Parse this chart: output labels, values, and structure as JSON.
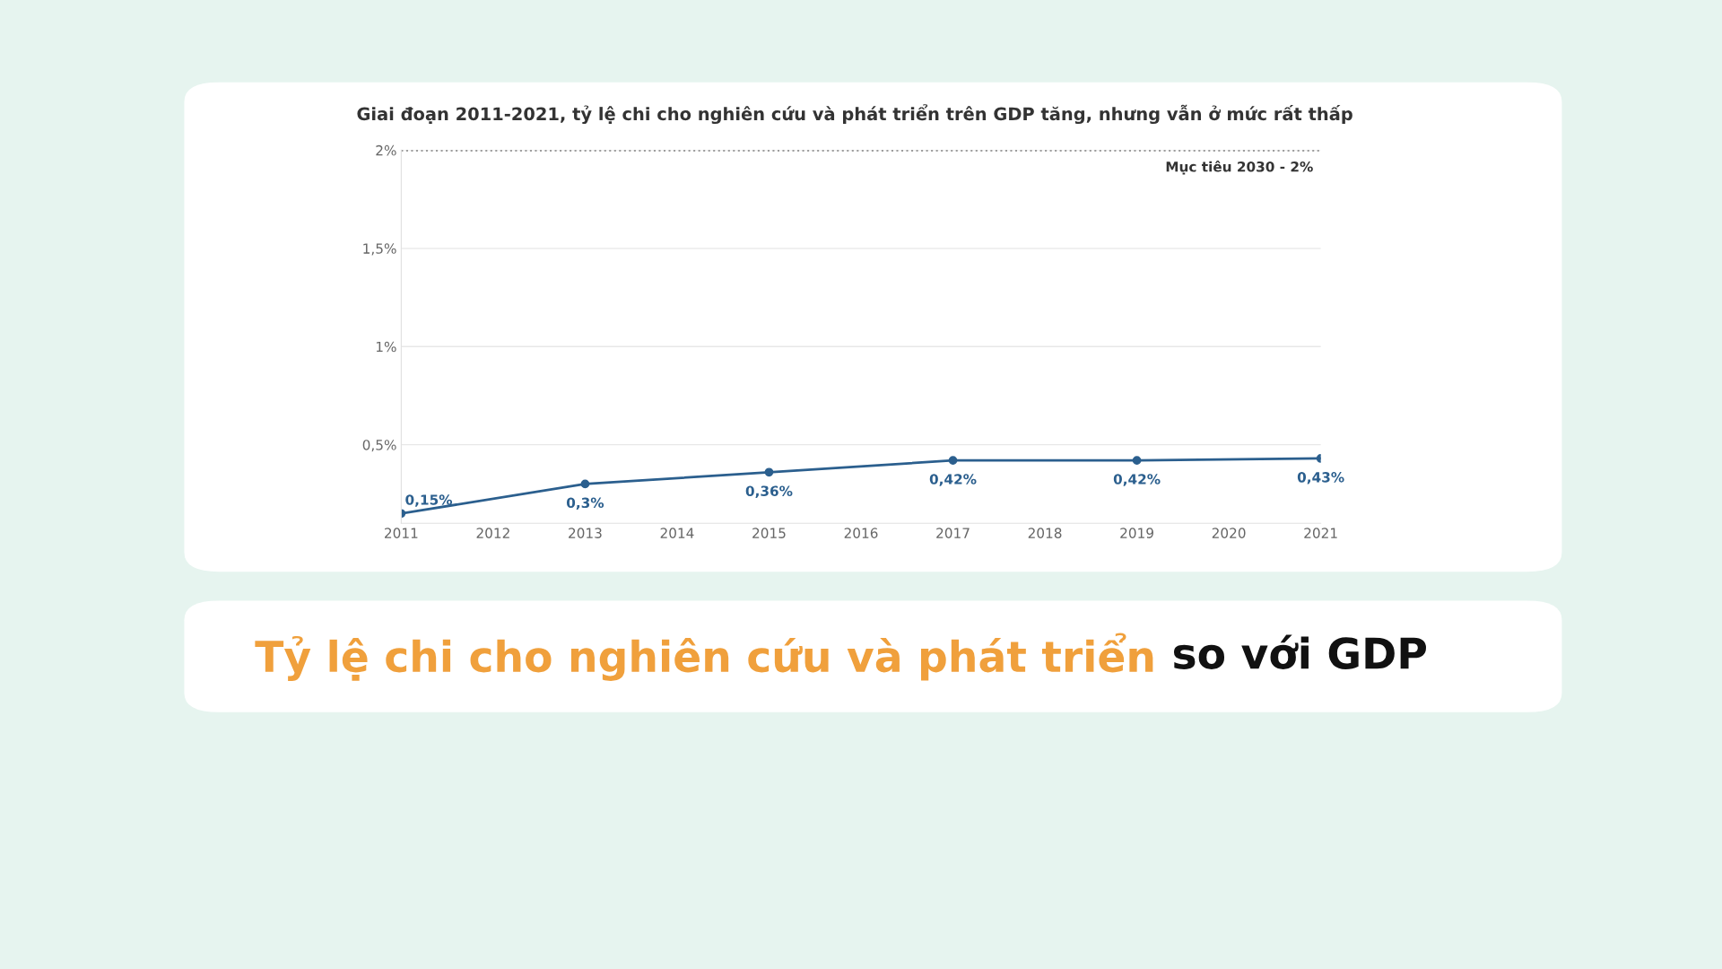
{
  "chart_data": {
    "type": "line",
    "title": "Giai đoạn 2011-2021, tỷ lệ chi cho nghiên cứu và phát triển trên GDP tăng, nhưng vẫn ở mức rất thấp",
    "x": [
      2011,
      2013,
      2015,
      2017,
      2019,
      2021
    ],
    "series": [
      {
        "color": "#2b5f8e",
        "values": [
          0.15,
          0.3,
          0.36,
          0.42,
          0.42,
          0.43
        ],
        "value_labels": [
          "0,15%",
          "0,3%",
          "0,36%",
          "0,42%",
          "0,42%",
          "0,43%"
        ]
      }
    ],
    "xlim": [
      2011,
      2021
    ],
    "xticks": [
      2011,
      2012,
      2013,
      2014,
      2015,
      2016,
      2017,
      2018,
      2019,
      2020,
      2021
    ],
    "ylim": [
      0.1,
      2
    ],
    "yticks": [
      {
        "value": 0.5,
        "label": "0,5%"
      },
      {
        "value": 1,
        "label": "1%"
      },
      {
        "value": 1.5,
        "label": "1,5%"
      },
      {
        "value": 2,
        "label": "2%"
      }
    ],
    "ref_lines": [
      {
        "axis": "y",
        "value": 2,
        "label": "Mục tiêu 2030 - 2%",
        "color": "#444444",
        "line_style": "dotted"
      }
    ],
    "grid": "y",
    "marker": "circle",
    "line_style": "solid",
    "legend": false,
    "annotations": [
      "Tỷ lệ chi cho nghiên cứu và phát triển",
      "so với GDP"
    ]
  }
}
